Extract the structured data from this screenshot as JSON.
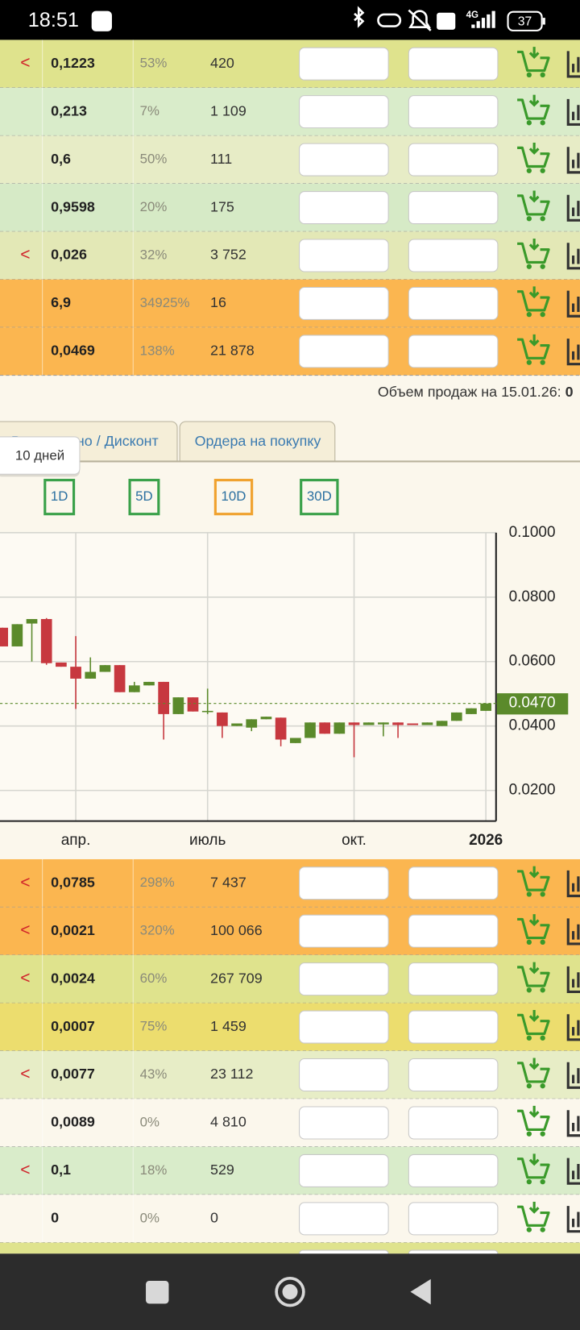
{
  "status_bar": {
    "time": "18:51",
    "network": "4G",
    "battery": "37"
  },
  "top_rows": [
    {
      "mark": "<",
      "price": "0,1223",
      "percent": "53%",
      "volume": "420"
    },
    {
      "price": "0,213",
      "percent": "7%",
      "volume": "1 109"
    },
    {
      "price": "0,6",
      "percent": "50%",
      "volume": "111"
    },
    {
      "price": "0,9598",
      "percent": "20%",
      "volume": "175"
    },
    {
      "mark": "<",
      "price": "0,026",
      "percent": "32%",
      "volume": "3 752"
    },
    {
      "price": "6,9",
      "percent": "34925%",
      "volume": "16"
    },
    {
      "price": "0,0469",
      "percent": "138%",
      "volume": "21 878"
    }
  ],
  "sales_note": {
    "label": "Объем продаж на 15.01.26:",
    "value": "0"
  },
  "tabs": [
    "Выставлено / Дисконт",
    "Ордера на покупку"
  ],
  "tooltip": "10 дней",
  "period_buttons": [
    "1D",
    "5D",
    "10D",
    "30D"
  ],
  "active_period": "10D",
  "chart_data": {
    "type": "candlestick",
    "categories": [
      null,
      null,
      null,
      null,
      null,
      "апр.",
      null,
      null,
      null,
      null,
      null,
      null,
      null,
      null,
      "июль",
      null,
      null,
      null,
      null,
      null,
      null,
      null,
      null,
      null,
      "окт.",
      null,
      null,
      null,
      null,
      null,
      null,
      null,
      null,
      "2026"
    ],
    "open": [
      0.0705,
      0.0647,
      0.0718,
      0.0732,
      0.0597,
      0.0584,
      0.0547,
      0.0568,
      0.0589,
      0.0505,
      0.0526,
      0.0537,
      0.0437,
      0.0489,
      0.0445,
      0.0442,
      0.04,
      0.0395,
      0.0421,
      0.0426,
      0.0347,
      0.0363,
      0.0411,
      0.0376,
      0.0411,
      0.0403,
      0.0405,
      0.0411,
      0.0408,
      0.0403,
      0.04,
      0.0416,
      0.0437,
      0.0447
    ],
    "high": [
      0.0705,
      0.0716,
      0.0732,
      0.0735,
      0.0597,
      0.0679,
      0.0613,
      0.0589,
      0.0589,
      0.0537,
      0.0537,
      0.0537,
      0.0489,
      0.0489,
      0.0516,
      0.0442,
      0.0408,
      0.0421,
      0.0429,
      0.0426,
      0.0363,
      0.0411,
      0.0411,
      0.0411,
      0.0411,
      0.0411,
      0.0411,
      0.0411,
      0.0408,
      0.0411,
      0.0416,
      0.0442,
      0.0455,
      0.047
    ],
    "low": [
      0.0647,
      0.0647,
      0.06,
      0.059,
      0.0584,
      0.0453,
      0.0547,
      0.0568,
      0.0505,
      0.0505,
      0.0526,
      0.0358,
      0.0437,
      0.0445,
      0.0437,
      0.0363,
      0.04,
      0.0384,
      0.0421,
      0.0337,
      0.0347,
      0.0363,
      0.0376,
      0.0376,
      0.0303,
      0.0403,
      0.0368,
      0.0363,
      0.0403,
      0.0403,
      0.04,
      0.0416,
      0.0437,
      0.0447
    ],
    "close": [
      0.0647,
      0.0716,
      0.0732,
      0.0595,
      0.0584,
      0.0547,
      0.0568,
      0.0589,
      0.0505,
      0.0526,
      0.0537,
      0.0437,
      0.0489,
      0.0445,
      0.0447,
      0.04,
      0.0408,
      0.0421,
      0.0429,
      0.0358,
      0.0363,
      0.0411,
      0.0376,
      0.0411,
      0.0403,
      0.0411,
      0.0411,
      0.0403,
      0.0403,
      0.0411,
      0.0416,
      0.0442,
      0.0455,
      0.047
    ],
    "ylim": [
      0.0105,
      0.1
    ],
    "yticks": [
      {
        "value": 0.02,
        "label": "0.0200"
      },
      {
        "value": 0.04,
        "label": "0.0400"
      },
      {
        "value": 0.06,
        "label": "0.0600"
      },
      {
        "value": 0.08,
        "label": "0.0800"
      },
      {
        "value": 0.1,
        "label": "0.1000"
      }
    ],
    "grid": true,
    "last_price": {
      "value": 0.047,
      "label": "0.0470"
    },
    "up_color": "#5b8a2b",
    "down_color": "#c7383f"
  },
  "bottom_rows": [
    {
      "mark": "<",
      "price": "0,0785",
      "percent": "298%",
      "volume": "7 437"
    },
    {
      "mark": "<",
      "price": "0,0021",
      "percent": "320%",
      "volume": "100 066"
    },
    {
      "mark": "<",
      "price": "0,0024",
      "percent": "60%",
      "volume": "267 709"
    },
    {
      "price": "0,0007",
      "percent": "75%",
      "volume": "1 459"
    },
    {
      "mark": "<",
      "price": "0,0077",
      "percent": "43%",
      "volume": "23 112"
    },
    {
      "price": "0,0089",
      "percent": "0%",
      "volume": "4 810"
    },
    {
      "mark": "<",
      "price": "0,1",
      "percent": "18%",
      "volume": "529"
    },
    {
      "price": "0",
      "percent": "0%",
      "volume": "0"
    }
  ]
}
